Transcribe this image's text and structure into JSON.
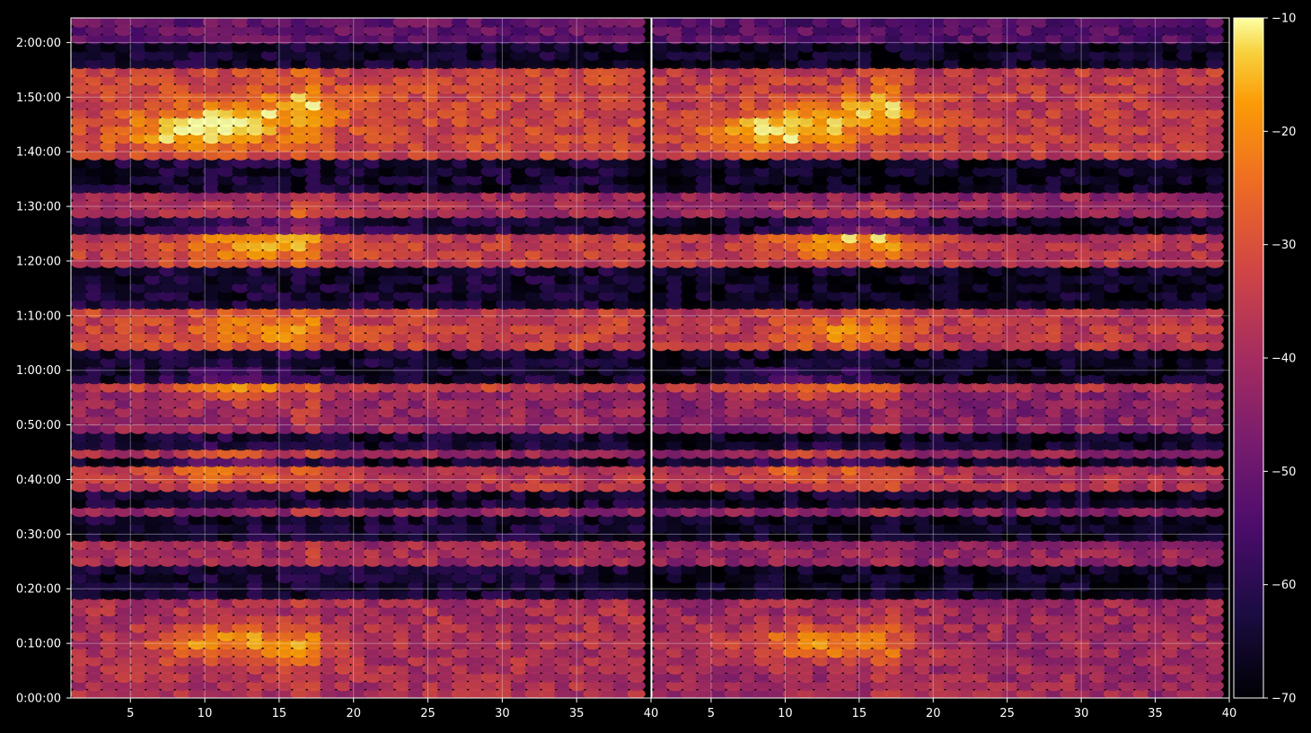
{
  "chart_data": {
    "type": "heatmap",
    "layout": "two side-by-side panels sharing the y axis, single colorbar on the right",
    "colormap": "inferno",
    "background": "#000000",
    "text_color": "#ffffff",
    "grid": true,
    "grid_color": "#ffffff",
    "title": "",
    "xlabel": "",
    "ylabel": "",
    "x_range": [
      1,
      40
    ],
    "y_range_seconds": [
      0,
      7470
    ],
    "panels": [
      {
        "name": "left",
        "x_ticks": [
          "5",
          "10",
          "15",
          "20",
          "25",
          "30",
          "35",
          "40"
        ]
      },
      {
        "name": "right",
        "x_ticks": [
          "5",
          "10",
          "15",
          "20",
          "25",
          "30",
          "35",
          "40"
        ]
      }
    ],
    "y_ticks": [
      "0:00:00",
      "0:10:00",
      "0:20:00",
      "0:30:00",
      "0:40:00",
      "0:50:00",
      "1:00:00",
      "1:10:00",
      "1:20:00",
      "1:30:00",
      "1:40:00",
      "1:50:00",
      "2:00:00"
    ],
    "colorbar": {
      "range": [
        -70,
        -10
      ],
      "ticks": [
        "−70",
        "−60",
        "−50",
        "−40",
        "−30",
        "−20",
        "−10"
      ]
    },
    "bright_bands": [
      {
        "from": "0:00:00",
        "to": "0:18:30",
        "level": -38
      },
      {
        "from": "0:25:00",
        "to": "0:29:00",
        "level": -40
      },
      {
        "from": "0:33:00",
        "to": "0:35:00",
        "level": -42
      },
      {
        "from": "0:37:30",
        "to": "0:42:30",
        "level": -36
      },
      {
        "from": "0:44:30",
        "to": "0:46:00",
        "level": -40
      },
      {
        "from": "0:49:00",
        "to": "0:55:30",
        "level": -42
      },
      {
        "from": "0:56:00",
        "to": "0:57:30",
        "level": -34
      },
      {
        "from": "1:04:00",
        "to": "1:11:00",
        "level": -33
      },
      {
        "from": "1:18:30",
        "to": "1:25:00",
        "level": -34
      },
      {
        "from": "1:28:00",
        "to": "1:33:00",
        "level": -40
      },
      {
        "from": "1:39:00",
        "to": "1:55:00",
        "level": -32
      },
      {
        "from": "2:00:00",
        "to": "2:04:30",
        "level": -50
      }
    ],
    "notes": "Dense ellipse markers form horizontal bands; hottest values (≈ -15) appear near x 10-17 around 0:10, 0:42, 0:57, 1:07 and 1:45-1:50; dark gaps (≈ -65) separate bands."
  }
}
